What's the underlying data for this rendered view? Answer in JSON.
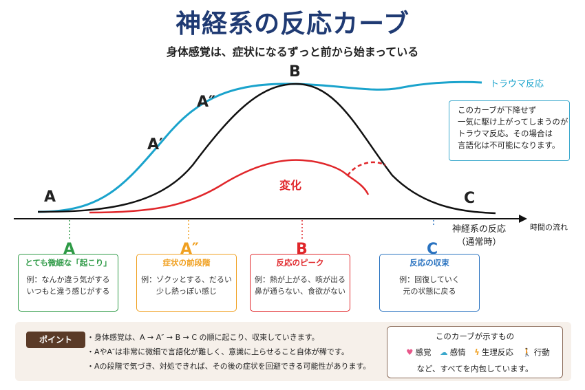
{
  "title": "神経系の反応カーブ",
  "subtitle": "身体感覚は、症状になるずっと前から始まっている",
  "curve_labels": {
    "a": "A",
    "a_prime": "A′",
    "a_double": "A″",
    "b": "B",
    "c": "C",
    "trauma": "トラウマ反応",
    "change": "変化"
  },
  "explain_box": [
    "このカーブが下降せず",
    "一気に駆け上がってしまうのが",
    "トラウマ反応。その場合は",
    "言語化は不可能になります。"
  ],
  "axis": {
    "label_line1": "神経系の反応",
    "label_line2": "（通常時）",
    "time": "時間の流れ"
  },
  "stages": [
    {
      "letter": "A",
      "subtitle": "とても微細な「起こり」",
      "desc": [
        "例：なんか違う気がする",
        "いつもと違う感じがする"
      ],
      "color": "#2e9a46"
    },
    {
      "letter": "A″",
      "subtitle": "症状の前段階",
      "desc": [
        "例：ゾクッとする、だるい",
        "少し熱っぽい感じ"
      ],
      "color": "#f0a020"
    },
    {
      "letter": "B",
      "subtitle": "反応のピーク",
      "desc": [
        "例：熱が上がる、咳が出る",
        "鼻が通らない、食欲がない"
      ],
      "color": "#e0262a"
    },
    {
      "letter": "C",
      "subtitle": "反応の収束",
      "desc": [
        "例：回復していく",
        "元の状態に戻る"
      ],
      "color": "#2a73c0"
    }
  ],
  "point": {
    "badge": "ポイント",
    "bullets": [
      "・身体感覚は、A → A″ → B → C の順に起こり、収束していきます。",
      "・AやA″は非常に微細で言語化が難しく、意識に上らせること自体が稀です。",
      "・Aの段階で気づき、対処できれば、その後の症状を回避できる可能性があります。"
    ]
  },
  "shows": {
    "heading": "このカーブが示すもの",
    "items": [
      {
        "icon": "heart-icon",
        "label": "感覚"
      },
      {
        "icon": "cloud-icon",
        "label": "感情"
      },
      {
        "icon": "lightning-icon",
        "label": "生理反応"
      },
      {
        "icon": "walking-person-icon",
        "label": "行動"
      }
    ],
    "footer": "など、すべてを内包しています。"
  },
  "colors": {
    "title": "#1f3a73",
    "trauma": "#1aa3cc",
    "change": "#e0262a",
    "normal": "#111111",
    "badge": "#5a3a27"
  }
}
